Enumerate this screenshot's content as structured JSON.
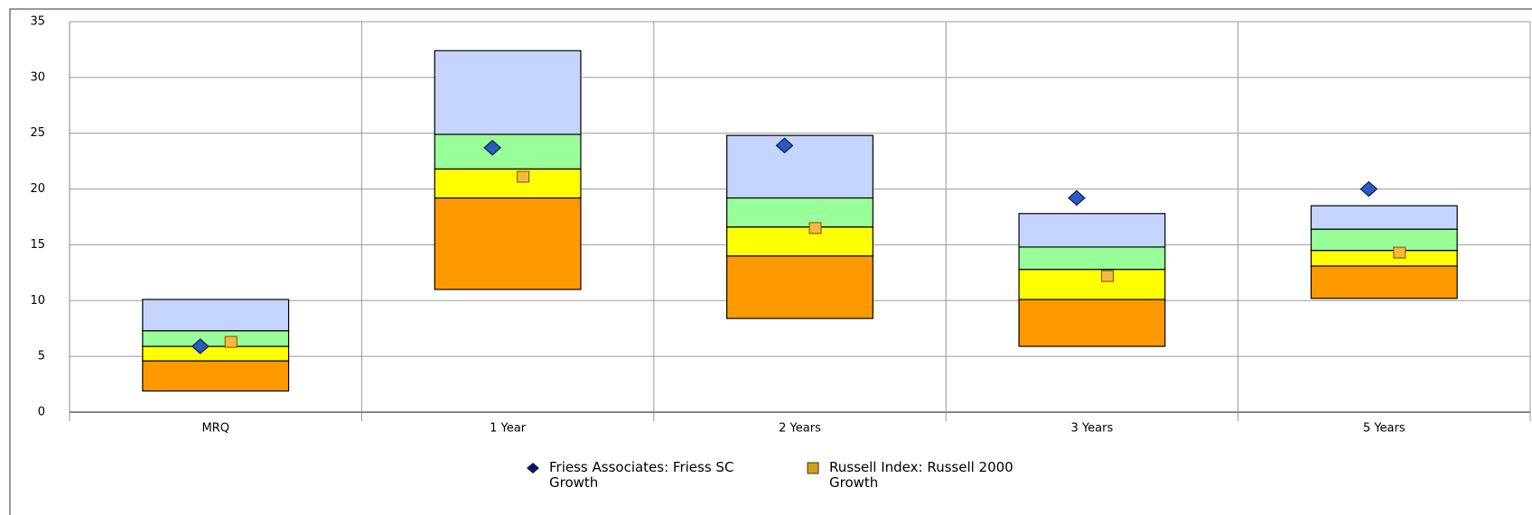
{
  "chart_data": {
    "type": "floating-range",
    "categories": [
      "MRQ",
      "1 Year",
      "2 Years",
      "3 Years",
      "5 Years"
    ],
    "ranges": [
      [
        1.9,
        4.6,
        5.9,
        7.3,
        10.1
      ],
      [
        11.0,
        19.2,
        21.8,
        24.9,
        32.4
      ],
      [
        8.4,
        14.0,
        16.6,
        19.2,
        24.8
      ],
      [
        5.9,
        10.1,
        12.8,
        14.8,
        17.8
      ],
      [
        10.2,
        13.1,
        14.5,
        16.4,
        18.5
      ]
    ],
    "range_colors": [
      "#ff9900",
      "#ffff00",
      "#99ff99",
      "#c5d5ff"
    ],
    "series": [
      {
        "name": "Friess Associates: Friess SC Growth",
        "color": "#2a5cbf",
        "legend_color": "#0a1a5c",
        "marker": "diamond",
        "values": [
          5.9,
          23.7,
          23.9,
          19.2,
          20.0
        ]
      },
      {
        "name": "Russell Index: Russell 2000 Growth",
        "color": "#f5b942",
        "legend_color": "#d4a017",
        "marker": "square",
        "values": [
          6.3,
          21.1,
          16.5,
          12.2,
          14.3
        ]
      }
    ],
    "ylim": [
      0,
      35
    ],
    "yticks": [
      0,
      5,
      10,
      15,
      20,
      25,
      30,
      35
    ],
    "grid": true
  }
}
